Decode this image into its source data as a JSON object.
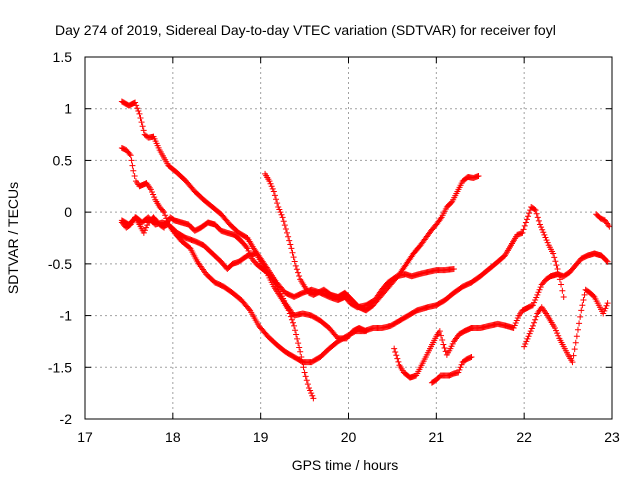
{
  "chart_data": {
    "type": "scatter",
    "title": "Day 274 of 2019, Sidereal Day-to-day VTEC variation (SDTVAR) for receiver foyl",
    "xlabel": "GPS time / hours",
    "ylabel": "SDTVAR / TECUs",
    "xlim": [
      17,
      23
    ],
    "ylim": [
      -2,
      1.5
    ],
    "xticks": [
      17,
      18,
      19,
      20,
      21,
      22,
      23
    ],
    "yticks": [
      -2,
      -1.5,
      -1,
      -0.5,
      0,
      0.5,
      1,
      1.5
    ],
    "xtick_labels": [
      "17",
      "18",
      "19",
      "20",
      "21",
      "22",
      "23"
    ],
    "ytick_labels": [
      "-2",
      "-1.5",
      "-1",
      "-0.5",
      "0",
      "0.5",
      "1",
      "1.5"
    ],
    "grid": true,
    "marker": "+",
    "marker_color": "#ff0000",
    "series": [
      {
        "name": "track-1",
        "points": [
          [
            17.42,
            1.07
          ],
          [
            17.5,
            1.03
          ],
          [
            17.57,
            1.06
          ],
          [
            17.62,
            0.95
          ],
          [
            17.68,
            0.75
          ],
          [
            17.72,
            0.72
          ],
          [
            17.78,
            0.73
          ],
          [
            17.85,
            0.6
          ],
          [
            17.95,
            0.45
          ],
          [
            18.05,
            0.38
          ],
          [
            18.15,
            0.3
          ],
          [
            18.25,
            0.2
          ],
          [
            18.35,
            0.12
          ],
          [
            18.45,
            0.05
          ],
          [
            18.55,
            -0.02
          ],
          [
            18.65,
            -0.12
          ],
          [
            18.75,
            -0.2
          ],
          [
            18.85,
            -0.25
          ],
          [
            18.92,
            -0.35
          ],
          [
            19.0,
            -0.45
          ],
          [
            19.08,
            -0.55
          ],
          [
            19.18,
            -0.68
          ],
          [
            19.28,
            -0.78
          ],
          [
            19.38,
            -0.82
          ],
          [
            19.48,
            -0.78
          ],
          [
            19.58,
            -0.75
          ],
          [
            19.68,
            -0.78
          ],
          [
            19.78,
            -0.82
          ],
          [
            19.88,
            -0.85
          ],
          [
            19.96,
            -0.82
          ],
          [
            20.02,
            -0.88
          ],
          [
            20.1,
            -0.92
          ],
          [
            20.2,
            -0.9
          ],
          [
            20.3,
            -0.85
          ],
          [
            20.38,
            -0.75
          ],
          [
            20.45,
            -0.68
          ],
          [
            20.55,
            -0.62
          ],
          [
            20.65,
            -0.6
          ],
          [
            20.72,
            -0.62
          ],
          [
            20.8,
            -0.6
          ],
          [
            20.9,
            -0.58
          ],
          [
            21.0,
            -0.56
          ],
          [
            21.1,
            -0.56
          ],
          [
            21.2,
            -0.55
          ]
        ]
      },
      {
        "name": "track-2",
        "points": [
          [
            17.42,
            0.62
          ],
          [
            17.47,
            0.6
          ],
          [
            17.52,
            0.55
          ],
          [
            17.55,
            0.4
          ],
          [
            17.58,
            0.3
          ],
          [
            17.62,
            0.25
          ],
          [
            17.7,
            0.28
          ],
          [
            17.75,
            0.22
          ],
          [
            17.8,
            0.12
          ],
          [
            17.85,
            0.05
          ],
          [
            17.9,
            0.0
          ],
          [
            17.95,
            -0.12
          ],
          [
            18.02,
            -0.2
          ],
          [
            18.1,
            -0.28
          ],
          [
            18.2,
            -0.35
          ],
          [
            18.28,
            -0.48
          ],
          [
            18.38,
            -0.6
          ],
          [
            18.48,
            -0.68
          ],
          [
            18.58,
            -0.72
          ],
          [
            18.68,
            -0.78
          ],
          [
            18.78,
            -0.85
          ],
          [
            18.88,
            -0.95
          ],
          [
            18.98,
            -1.1
          ],
          [
            19.08,
            -1.2
          ],
          [
            19.18,
            -1.28
          ],
          [
            19.28,
            -1.35
          ],
          [
            19.38,
            -1.4
          ],
          [
            19.48,
            -1.45
          ],
          [
            19.58,
            -1.45
          ],
          [
            19.68,
            -1.4
          ],
          [
            19.78,
            -1.32
          ],
          [
            19.88,
            -1.25
          ],
          [
            19.98,
            -1.2
          ],
          [
            20.08,
            -1.15
          ],
          [
            20.18,
            -1.15
          ],
          [
            20.28,
            -1.12
          ],
          [
            20.38,
            -1.12
          ],
          [
            20.48,
            -1.1
          ],
          [
            20.58,
            -1.05
          ],
          [
            20.68,
            -1.0
          ],
          [
            20.78,
            -0.95
          ],
          [
            20.9,
            -0.92
          ],
          [
            21.0,
            -0.9
          ],
          [
            21.1,
            -0.85
          ],
          [
            21.2,
            -0.78
          ],
          [
            21.3,
            -0.72
          ],
          [
            21.4,
            -0.68
          ],
          [
            21.5,
            -0.62
          ],
          [
            21.6,
            -0.55
          ],
          [
            21.7,
            -0.48
          ],
          [
            21.78,
            -0.42
          ],
          [
            21.85,
            -0.32
          ],
          [
            21.92,
            -0.22
          ],
          [
            21.98,
            -0.2
          ],
          [
            22.02,
            -0.1
          ],
          [
            22.08,
            0.05
          ],
          [
            22.13,
            0.02
          ],
          [
            22.18,
            -0.12
          ],
          [
            22.23,
            -0.22
          ],
          [
            22.28,
            -0.32
          ],
          [
            22.33,
            -0.4
          ],
          [
            22.38,
            -0.55
          ],
          [
            22.42,
            -0.7
          ],
          [
            22.45,
            -0.82
          ]
        ]
      },
      {
        "name": "track-3",
        "points": [
          [
            17.42,
            -0.1
          ],
          [
            17.47,
            -0.15
          ],
          [
            17.52,
            -0.12
          ],
          [
            17.57,
            -0.05
          ],
          [
            17.62,
            -0.12
          ],
          [
            17.67,
            -0.2
          ],
          [
            17.72,
            -0.1
          ],
          [
            17.78,
            -0.05
          ],
          [
            17.85,
            -0.12
          ],
          [
            17.9,
            -0.15
          ],
          [
            17.97,
            -0.05
          ],
          [
            18.02,
            -0.08
          ],
          [
            18.1,
            -0.1
          ],
          [
            18.18,
            -0.12
          ],
          [
            18.25,
            -0.18
          ],
          [
            18.32,
            -0.15
          ],
          [
            18.4,
            -0.1
          ],
          [
            18.48,
            -0.12
          ],
          [
            18.55,
            -0.18
          ],
          [
            18.62,
            -0.2
          ],
          [
            18.7,
            -0.22
          ],
          [
            18.78,
            -0.28
          ],
          [
            18.85,
            -0.35
          ],
          [
            18.9,
            -0.45
          ],
          [
            18.95,
            -0.5
          ],
          [
            19.02,
            -0.55
          ],
          [
            19.1,
            -0.6
          ],
          [
            19.18,
            -0.7
          ],
          [
            19.28,
            -0.88
          ],
          [
            19.38,
            -1.0
          ],
          [
            19.48,
            -0.98
          ],
          [
            19.58,
            -1.0
          ],
          [
            19.68,
            -1.05
          ],
          [
            19.78,
            -1.12
          ],
          [
            19.88,
            -1.22
          ],
          [
            19.98,
            -1.22
          ],
          [
            20.05,
            -1.15
          ],
          [
            20.12,
            -1.12
          ],
          [
            20.2,
            -1.15
          ]
        ]
      },
      {
        "name": "track-4",
        "points": [
          [
            17.42,
            -0.08
          ],
          [
            17.5,
            -0.12
          ],
          [
            17.58,
            -0.05
          ],
          [
            17.65,
            -0.1
          ],
          [
            17.72,
            -0.05
          ],
          [
            17.8,
            -0.12
          ],
          [
            17.88,
            -0.1
          ],
          [
            17.95,
            -0.12
          ],
          [
            18.05,
            -0.2
          ],
          [
            18.15,
            -0.25
          ],
          [
            18.25,
            -0.28
          ],
          [
            18.35,
            -0.32
          ],
          [
            18.45,
            -0.4
          ],
          [
            18.55,
            -0.48
          ],
          [
            18.62,
            -0.55
          ],
          [
            18.68,
            -0.5
          ],
          [
            18.75,
            -0.48
          ],
          [
            18.85,
            -0.42
          ],
          [
            18.95,
            -0.4
          ],
          [
            19.05,
            -0.55
          ],
          [
            19.15,
            -0.72
          ],
          [
            19.25,
            -0.85
          ],
          [
            19.32,
            -0.95
          ],
          [
            19.38,
            -1.1
          ],
          [
            19.45,
            -1.35
          ],
          [
            19.5,
            -1.55
          ],
          [
            19.55,
            -1.7
          ],
          [
            19.6,
            -1.8
          ]
        ]
      },
      {
        "name": "track-5",
        "points": [
          [
            19.05,
            0.37
          ],
          [
            19.1,
            0.3
          ],
          [
            19.15,
            0.2
          ],
          [
            19.2,
            0.05
          ],
          [
            19.25,
            -0.05
          ],
          [
            19.3,
            -0.2
          ],
          [
            19.35,
            -0.35
          ],
          [
            19.4,
            -0.52
          ],
          [
            19.45,
            -0.65
          ],
          [
            19.5,
            -0.72
          ],
          [
            19.55,
            -0.78
          ],
          [
            19.6,
            -0.8
          ],
          [
            19.65,
            -0.78
          ],
          [
            19.72,
            -0.75
          ],
          [
            19.8,
            -0.8
          ],
          [
            19.88,
            -0.82
          ],
          [
            19.96,
            -0.78
          ],
          [
            20.04,
            -0.85
          ],
          [
            20.12,
            -0.92
          ],
          [
            20.2,
            -0.95
          ],
          [
            20.28,
            -0.9
          ],
          [
            20.38,
            -0.8
          ],
          [
            20.48,
            -0.7
          ],
          [
            20.58,
            -0.6
          ],
          [
            20.66,
            -0.5
          ],
          [
            20.74,
            -0.4
          ],
          [
            20.82,
            -0.32
          ],
          [
            20.88,
            -0.25
          ],
          [
            20.94,
            -0.18
          ],
          [
            21.0,
            -0.12
          ],
          [
            21.06,
            -0.05
          ],
          [
            21.12,
            0.05
          ],
          [
            21.18,
            0.1
          ],
          [
            21.24,
            0.2
          ],
          [
            21.3,
            0.3
          ],
          [
            21.36,
            0.34
          ],
          [
            21.42,
            0.33
          ],
          [
            21.48,
            0.35
          ]
        ]
      },
      {
        "name": "track-6",
        "points": [
          [
            20.52,
            -1.32
          ],
          [
            20.58,
            -1.48
          ],
          [
            20.63,
            -1.55
          ],
          [
            20.7,
            -1.6
          ],
          [
            20.77,
            -1.58
          ],
          [
            20.82,
            -1.5
          ],
          [
            20.88,
            -1.4
          ],
          [
            20.94,
            -1.3
          ],
          [
            21.0,
            -1.2
          ],
          [
            21.04,
            -1.15
          ],
          [
            21.08,
            -1.28
          ],
          [
            21.12,
            -1.38
          ],
          [
            21.16,
            -1.32
          ],
          [
            21.2,
            -1.25
          ],
          [
            21.26,
            -1.18
          ],
          [
            21.32,
            -1.15
          ],
          [
            21.4,
            -1.12
          ],
          [
            21.5,
            -1.12
          ],
          [
            21.6,
            -1.1
          ],
          [
            21.7,
            -1.08
          ],
          [
            21.8,
            -1.1
          ],
          [
            21.88,
            -1.12
          ],
          [
            21.94,
            -1.0
          ],
          [
            21.98,
            -0.95
          ],
          [
            22.05,
            -0.92
          ],
          [
            22.1,
            -0.9
          ],
          [
            22.15,
            -0.8
          ],
          [
            22.2,
            -0.7
          ],
          [
            22.25,
            -0.65
          ],
          [
            22.3,
            -0.62
          ],
          [
            22.38,
            -0.6
          ],
          [
            22.45,
            -0.62
          ],
          [
            22.52,
            -0.58
          ],
          [
            22.58,
            -0.52
          ],
          [
            22.65,
            -0.45
          ],
          [
            22.72,
            -0.42
          ],
          [
            22.8,
            -0.4
          ],
          [
            22.88,
            -0.42
          ],
          [
            22.95,
            -0.48
          ]
        ]
      },
      {
        "name": "track-7",
        "points": [
          [
            20.95,
            -1.65
          ],
          [
            21.0,
            -1.62
          ],
          [
            21.05,
            -1.58
          ],
          [
            21.1,
            -1.58
          ],
          [
            21.15,
            -1.58
          ],
          [
            21.2,
            -1.56
          ],
          [
            21.25,
            -1.55
          ],
          [
            21.3,
            -1.45
          ],
          [
            21.35,
            -1.42
          ],
          [
            21.4,
            -1.4
          ]
        ]
      },
      {
        "name": "track-8",
        "points": [
          [
            22.0,
            -1.3
          ],
          [
            22.05,
            -1.2
          ],
          [
            22.1,
            -1.1
          ],
          [
            22.15,
            -0.98
          ],
          [
            22.2,
            -0.92
          ],
          [
            22.25,
            -0.98
          ],
          [
            22.3,
            -1.05
          ],
          [
            22.35,
            -1.12
          ],
          [
            22.4,
            -1.22
          ],
          [
            22.45,
            -1.3
          ],
          [
            22.5,
            -1.38
          ],
          [
            22.55,
            -1.45
          ],
          [
            22.6,
            -1.2
          ],
          [
            22.65,
            -0.95
          ],
          [
            22.7,
            -0.75
          ],
          [
            22.75,
            -0.78
          ],
          [
            22.8,
            -0.82
          ],
          [
            22.85,
            -0.9
          ],
          [
            22.9,
            -0.98
          ],
          [
            22.95,
            -0.88
          ]
        ]
      },
      {
        "name": "track-9",
        "points": [
          [
            22.82,
            -0.02
          ],
          [
            22.87,
            -0.06
          ],
          [
            22.92,
            -0.08
          ],
          [
            22.97,
            -0.14
          ]
        ]
      }
    ]
  }
}
